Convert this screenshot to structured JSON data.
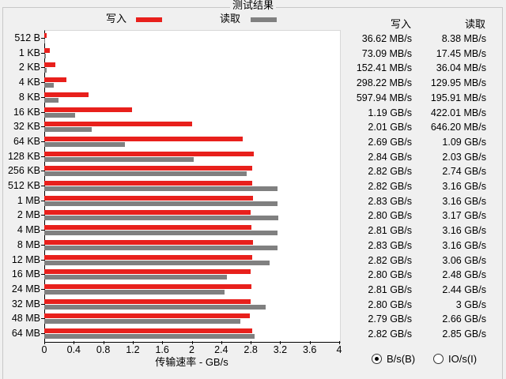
{
  "group_title": "测试结果",
  "legend": {
    "write_label": "写入",
    "read_label": "读取"
  },
  "colors": {
    "write": "#e8201c",
    "read": "#808080"
  },
  "table_headers": {
    "write": "写入",
    "read": "读取"
  },
  "radio": {
    "bytes_label": "B/s(B)",
    "io_label": "IO/s(I)",
    "selected": "bytes"
  },
  "chart_data": {
    "type": "bar",
    "orientation": "horizontal",
    "xlabel": "传输速率 - GB/s",
    "xlim": [
      0,
      4
    ],
    "xticks": [
      "0",
      "0.4",
      "0.8",
      "1.2",
      "1.6",
      "2",
      "2.4",
      "2.8",
      "3.2",
      "3.6",
      "4"
    ],
    "categories": [
      "512 B",
      "1 KB",
      "2 KB",
      "4 KB",
      "8 KB",
      "16 KB",
      "32 KB",
      "64 KB",
      "128 KB",
      "256 KB",
      "512 KB",
      "1 MB",
      "2 MB",
      "4 MB",
      "8 MB",
      "12 MB",
      "16 MB",
      "24 MB",
      "32 MB",
      "48 MB",
      "64 MB"
    ],
    "series": [
      {
        "name": "写入",
        "values": [
          0.03662,
          0.07309,
          0.15241,
          0.29822,
          0.59794,
          1.19,
          2.01,
          2.69,
          2.84,
          2.82,
          2.82,
          2.83,
          2.8,
          2.81,
          2.83,
          2.82,
          2.8,
          2.81,
          2.8,
          2.79,
          2.82
        ]
      },
      {
        "name": "读取",
        "values": [
          0.00838,
          0.01745,
          0.03604,
          0.12995,
          0.19591,
          0.42201,
          0.6462,
          1.09,
          2.03,
          2.74,
          3.16,
          3.16,
          3.17,
          3.16,
          3.16,
          3.06,
          2.48,
          2.44,
          3.0,
          2.66,
          2.85
        ]
      }
    ],
    "write_text": [
      "36.62 MB/s",
      "73.09 MB/s",
      "152.41 MB/s",
      "298.22 MB/s",
      "597.94 MB/s",
      "1.19 GB/s",
      "2.01 GB/s",
      "2.69 GB/s",
      "2.84 GB/s",
      "2.82 GB/s",
      "2.82 GB/s",
      "2.83 GB/s",
      "2.80 GB/s",
      "2.81 GB/s",
      "2.83 GB/s",
      "2.82 GB/s",
      "2.80 GB/s",
      "2.81 GB/s",
      "2.80 GB/s",
      "2.79 GB/s",
      "2.82 GB/s"
    ],
    "read_text": [
      "8.38 MB/s",
      "17.45 MB/s",
      "36.04 MB/s",
      "129.95 MB/s",
      "195.91 MB/s",
      "422.01 MB/s",
      "646.20 MB/s",
      "1.09 GB/s",
      "2.03 GB/s",
      "2.74 GB/s",
      "3.16 GB/s",
      "3.16 GB/s",
      "3.17 GB/s",
      "3.16 GB/s",
      "3.16 GB/s",
      "3.06 GB/s",
      "2.48 GB/s",
      "2.44 GB/s",
      "3 GB/s",
      "2.66 GB/s",
      "2.85 GB/s"
    ]
  }
}
